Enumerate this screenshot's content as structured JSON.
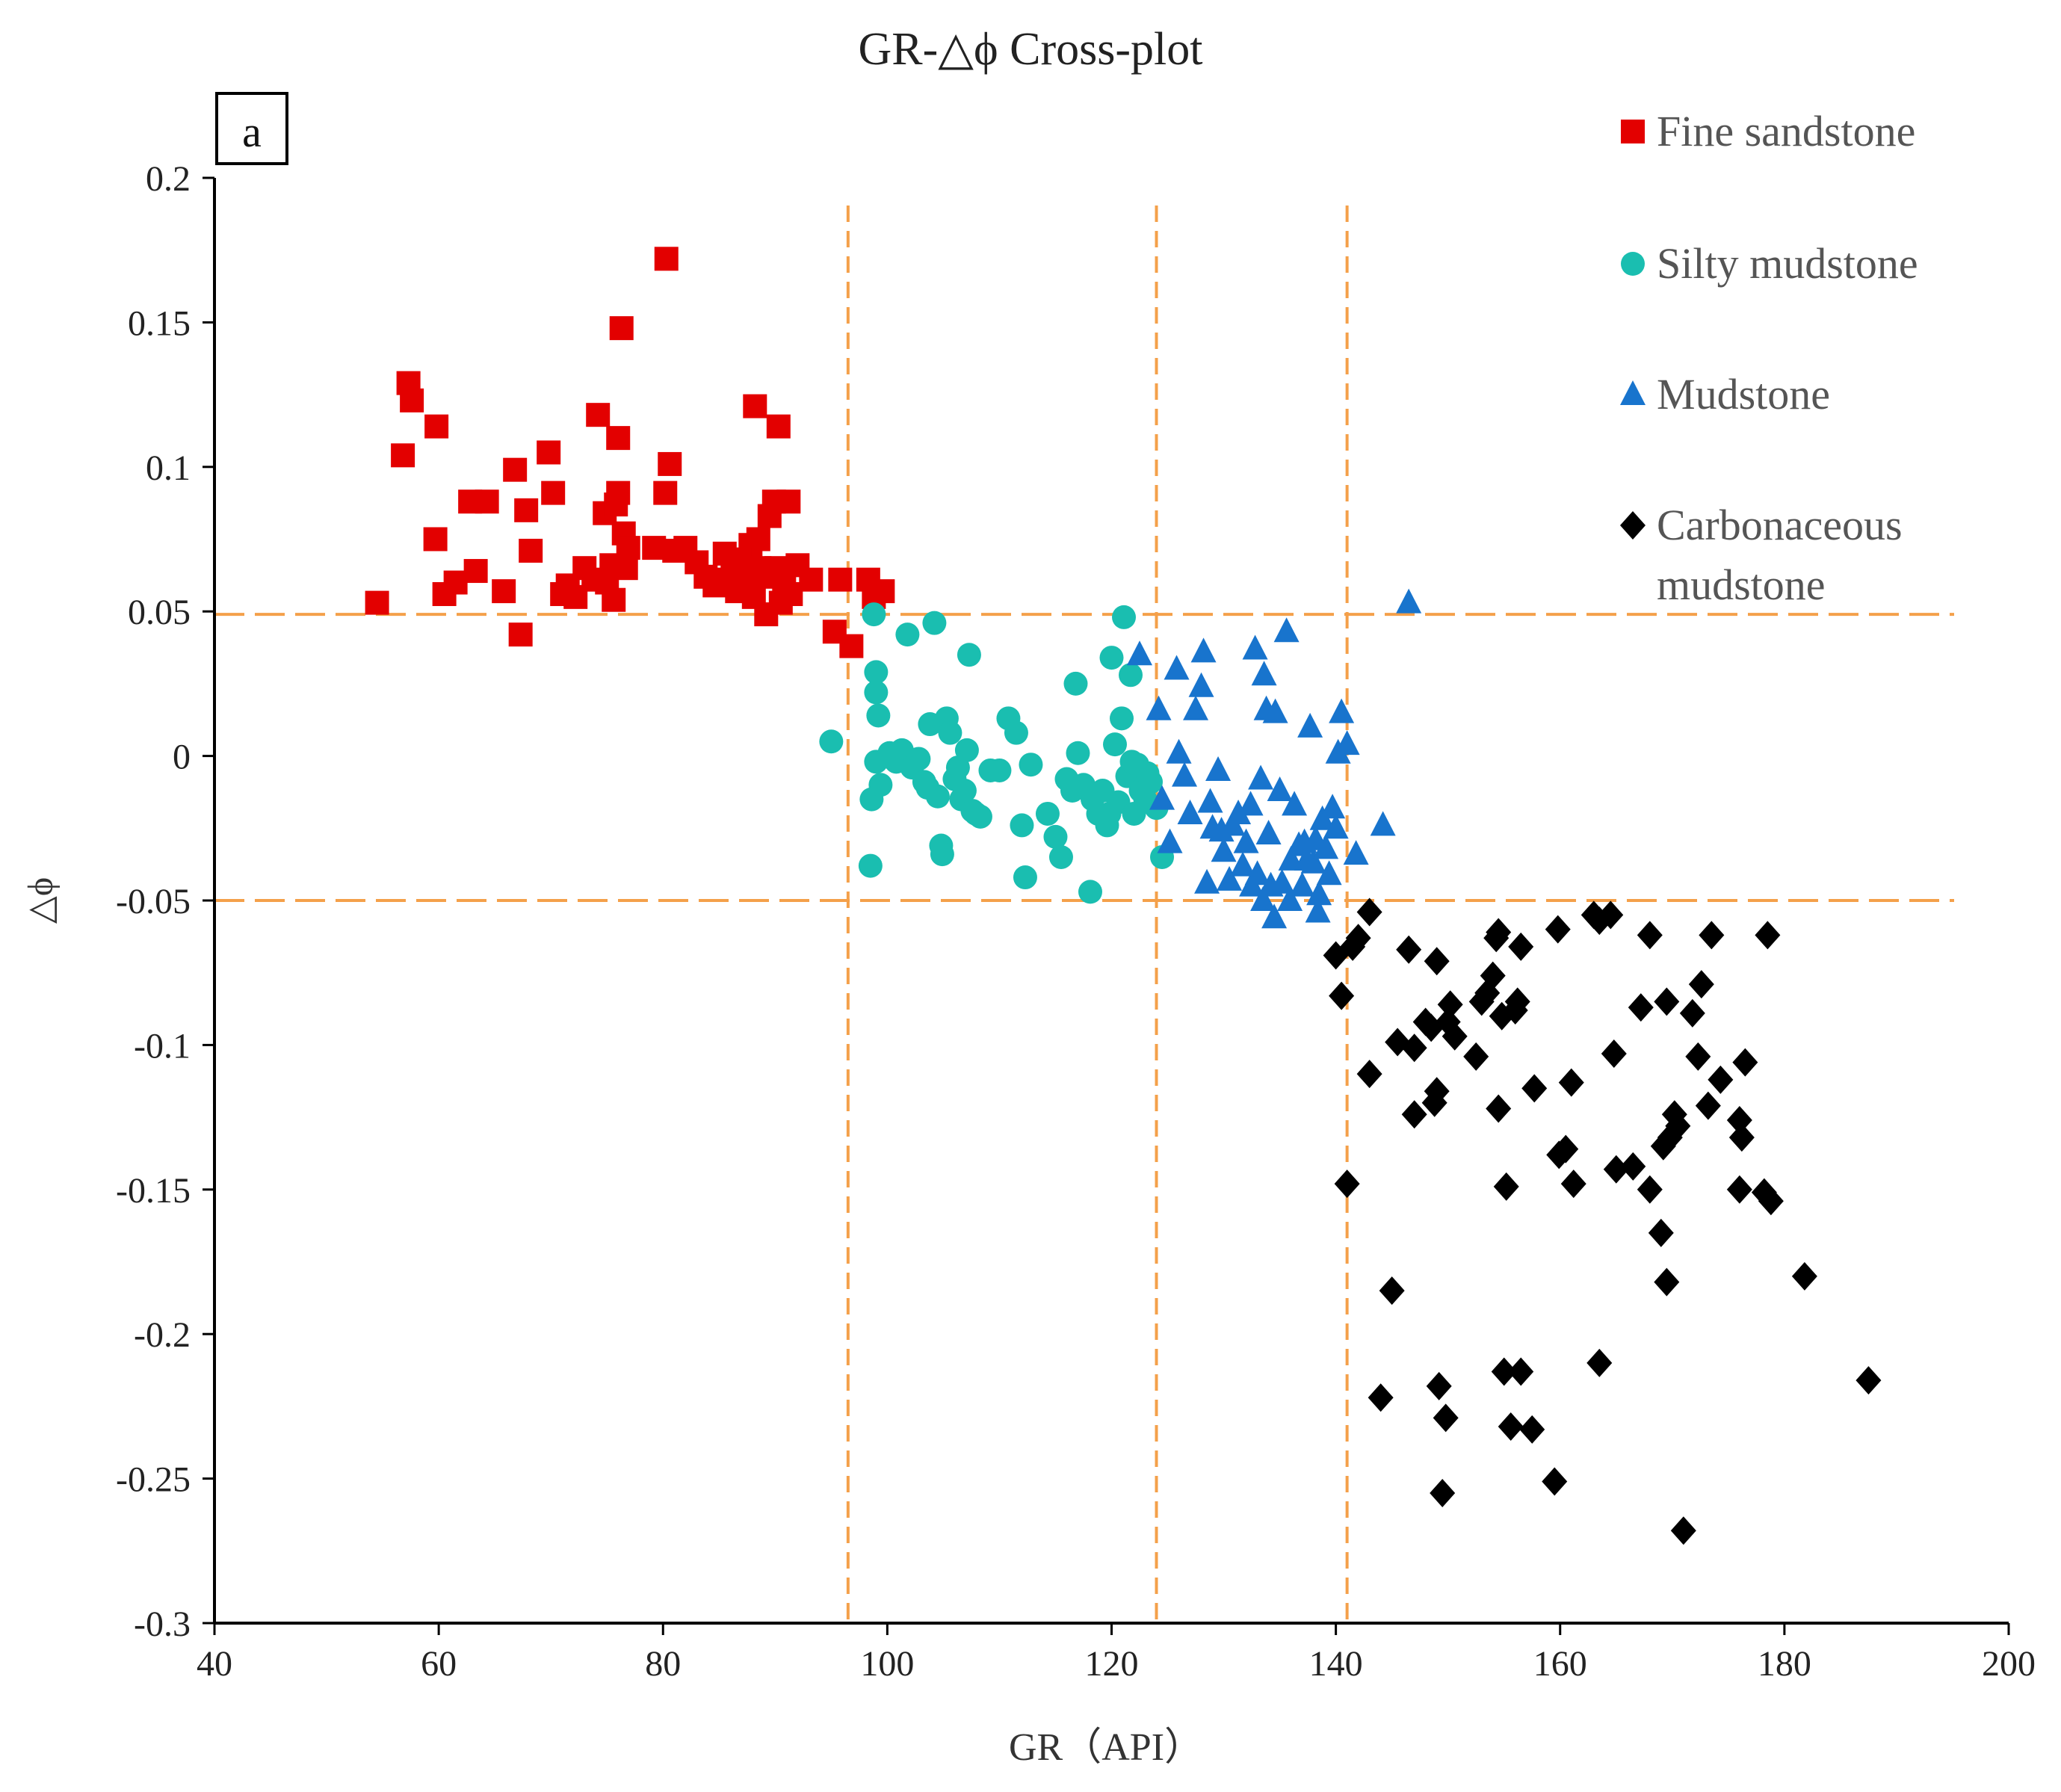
{
  "chart_data": {
    "type": "scatter",
    "title": "GR-△ϕ Cross-plot",
    "panel_label": "a",
    "xlabel": "GR（API）",
    "ylabel": "△ϕ",
    "xlim": [
      40,
      200
    ],
    "ylim": [
      -0.3,
      0.2
    ],
    "x_ticks": [
      40,
      60,
      80,
      100,
      120,
      140,
      160,
      180,
      200
    ],
    "y_ticks": [
      0.2,
      0.15,
      0.1,
      0.05,
      0,
      -0.05,
      -0.1,
      -0.15,
      -0.2,
      -0.25,
      -0.3
    ],
    "x_tick_labels": [
      "40",
      "60",
      "80",
      "100",
      "120",
      "140",
      "160",
      "180",
      "200"
    ],
    "y_tick_labels": [
      "0.2",
      "0.15",
      "0.1",
      "0.05",
      "0",
      "-0.05",
      "-0.1",
      "-0.15",
      "-0.2",
      "-0.25",
      "-0.3"
    ],
    "grid": false,
    "legend_position": "top-right",
    "reference_lines": {
      "vertical_x": [
        96.5,
        124,
        141
      ],
      "horizontal_y": [
        0.049,
        -0.05
      ],
      "color": "#F4A04A"
    },
    "series": [
      {
        "name": "Fine sandstone",
        "marker": "square",
        "color": "#E30000",
        "points": [
          [
            54.5,
            0.053
          ],
          [
            56.8,
            0.104
          ],
          [
            57.3,
            0.129
          ],
          [
            57.6,
            0.123
          ],
          [
            59.8,
            0.114
          ],
          [
            59.7,
            0.075
          ],
          [
            60.5,
            0.056
          ],
          [
            61.5,
            0.06
          ],
          [
            62.8,
            0.088
          ],
          [
            63.3,
            0.064
          ],
          [
            64.3,
            0.088
          ],
          [
            65.8,
            0.057
          ],
          [
            66.8,
            0.099
          ],
          [
            67.3,
            0.042
          ],
          [
            67.8,
            0.085
          ],
          [
            68.2,
            0.071
          ],
          [
            69.8,
            0.105
          ],
          [
            70.2,
            0.091
          ],
          [
            71.0,
            0.056
          ],
          [
            71.5,
            0.059
          ],
          [
            72.2,
            0.055
          ],
          [
            73.0,
            0.065
          ],
          [
            73.8,
            0.061
          ],
          [
            74.2,
            0.118
          ],
          [
            74.8,
            0.084
          ],
          [
            75.0,
            0.06
          ],
          [
            75.4,
            0.066
          ],
          [
            75.6,
            0.054
          ],
          [
            75.8,
            0.087
          ],
          [
            76.0,
            0.11
          ],
          [
            76.0,
            0.091
          ],
          [
            76.3,
            0.148
          ],
          [
            76.5,
            0.077
          ],
          [
            76.7,
            0.065
          ],
          [
            76.9,
            0.072
          ],
          [
            79.2,
            0.072
          ],
          [
            80.3,
            0.172
          ],
          [
            80.2,
            0.091
          ],
          [
            80.6,
            0.101
          ],
          [
            81.0,
            0.071
          ],
          [
            82.0,
            0.072
          ],
          [
            83.0,
            0.067
          ],
          [
            83.8,
            0.062
          ],
          [
            84.6,
            0.059
          ],
          [
            85.5,
            0.07
          ],
          [
            86.2,
            0.065
          ],
          [
            86.6,
            0.057
          ],
          [
            87.2,
            0.059
          ],
          [
            87.6,
            0.063
          ],
          [
            87.8,
            0.073
          ],
          [
            88.2,
            0.121
          ],
          [
            88.1,
            0.055
          ],
          [
            88.5,
            0.075
          ],
          [
            89.0,
            0.062
          ],
          [
            89.2,
            0.049
          ],
          [
            89.5,
            0.083
          ],
          [
            89.9,
            0.088
          ],
          [
            90.3,
            0.114
          ],
          [
            90.1,
            0.065
          ],
          [
            90.8,
            0.06
          ],
          [
            91.2,
            0.088
          ],
          [
            91.4,
            0.056
          ],
          [
            92.0,
            0.066
          ],
          [
            93.2,
            0.061
          ],
          [
            95.3,
            0.043
          ],
          [
            95.8,
            0.061
          ],
          [
            96.8,
            0.038
          ],
          [
            98.3,
            0.061
          ],
          [
            98.8,
            0.055
          ],
          [
            99.6,
            0.057
          ],
          [
            85.2,
            0.061
          ],
          [
            86.8,
            0.068
          ],
          [
            88.6,
            0.065
          ],
          [
            90.5,
            0.053
          ]
        ]
      },
      {
        "name": "Silty mudstone",
        "marker": "circle",
        "color": "#1ABEB0",
        "points": [
          [
            95.0,
            0.005
          ],
          [
            98.5,
            -0.038
          ],
          [
            98.6,
            -0.015
          ],
          [
            98.8,
            0.049
          ],
          [
            99.0,
            0.029
          ],
          [
            99.0,
            0.022
          ],
          [
            99.2,
            0.014
          ],
          [
            99.0,
            -0.002
          ],
          [
            99.4,
            -0.01
          ],
          [
            100.2,
            0.001
          ],
          [
            100.8,
            -0.002
          ],
          [
            101.3,
            0.002
          ],
          [
            101.8,
            0.042
          ],
          [
            102.2,
            -0.004
          ],
          [
            102.8,
            -0.001
          ],
          [
            103.3,
            -0.009
          ],
          [
            103.6,
            -0.011
          ],
          [
            103.8,
            0.011
          ],
          [
            104.2,
            0.046
          ],
          [
            104.5,
            -0.014
          ],
          [
            104.8,
            -0.031
          ],
          [
            104.9,
            -0.034
          ],
          [
            105.3,
            0.013
          ],
          [
            105.6,
            0.008
          ],
          [
            106.0,
            -0.008
          ],
          [
            106.3,
            -0.004
          ],
          [
            106.6,
            -0.015
          ],
          [
            106.9,
            -0.012
          ],
          [
            107.1,
            0.002
          ],
          [
            107.3,
            0.035
          ],
          [
            107.6,
            -0.019
          ],
          [
            107.9,
            -0.02
          ],
          [
            108.3,
            -0.021
          ],
          [
            109.2,
            -0.005
          ],
          [
            110.0,
            -0.005
          ],
          [
            110.8,
            0.013
          ],
          [
            111.5,
            0.008
          ],
          [
            112.0,
            -0.024
          ],
          [
            112.3,
            -0.042
          ],
          [
            112.8,
            -0.003
          ],
          [
            114.3,
            -0.02
          ],
          [
            115.0,
            -0.028
          ],
          [
            115.5,
            -0.035
          ],
          [
            116.0,
            -0.008
          ],
          [
            116.5,
            -0.012
          ],
          [
            116.8,
            0.025
          ],
          [
            117.0,
            0.001
          ],
          [
            117.5,
            -0.01
          ],
          [
            118.1,
            -0.047
          ],
          [
            118.3,
            -0.015
          ],
          [
            118.8,
            -0.02
          ],
          [
            119.2,
            -0.012
          ],
          [
            119.6,
            -0.024
          ],
          [
            120.0,
            0.034
          ],
          [
            120.3,
            0.004
          ],
          [
            120.6,
            -0.016
          ],
          [
            120.9,
            0.013
          ],
          [
            121.1,
            0.048
          ],
          [
            121.4,
            -0.007
          ],
          [
            121.7,
            0.028
          ],
          [
            122.0,
            -0.02
          ],
          [
            122.3,
            -0.003
          ],
          [
            122.6,
            -0.012
          ],
          [
            123.0,
            -0.015
          ],
          [
            123.2,
            -0.006
          ],
          [
            123.5,
            -0.009
          ],
          [
            124.0,
            -0.018
          ],
          [
            124.5,
            -0.035
          ],
          [
            119.8,
            -0.02
          ],
          [
            121.8,
            -0.002
          ]
        ]
      },
      {
        "name": "Mudstone",
        "marker": "triangle",
        "color": "#1874CD",
        "points": [
          [
            122.5,
            0.035
          ],
          [
            124.2,
            0.016
          ],
          [
            124.5,
            -0.015
          ],
          [
            125.2,
            -0.03
          ],
          [
            125.8,
            0.03
          ],
          [
            126.0,
            0.001
          ],
          [
            126.5,
            -0.007
          ],
          [
            127.0,
            -0.02
          ],
          [
            127.5,
            0.016
          ],
          [
            128.0,
            0.024
          ],
          [
            128.2,
            0.036
          ],
          [
            128.5,
            -0.044
          ],
          [
            128.8,
            -0.016
          ],
          [
            129.0,
            -0.025
          ],
          [
            129.5,
            -0.005
          ],
          [
            130.0,
            -0.033
          ],
          [
            130.5,
            -0.043
          ],
          [
            130.8,
            -0.024
          ],
          [
            131.3,
            -0.02
          ],
          [
            131.7,
            -0.038
          ],
          [
            132.0,
            -0.03
          ],
          [
            132.4,
            -0.017
          ],
          [
            132.8,
            0.037
          ],
          [
            133.0,
            -0.041
          ],
          [
            133.3,
            -0.008
          ],
          [
            133.5,
            -0.05
          ],
          [
            133.6,
            0.028
          ],
          [
            133.8,
            0.016
          ],
          [
            134.0,
            -0.027
          ],
          [
            134.2,
            -0.045
          ],
          [
            134.5,
            -0.056
          ],
          [
            134.6,
            0.015
          ],
          [
            135.0,
            -0.012
          ],
          [
            135.2,
            -0.044
          ],
          [
            135.6,
            0.043
          ],
          [
            135.9,
            -0.05
          ],
          [
            136.3,
            -0.017
          ],
          [
            136.7,
            -0.031
          ],
          [
            137.0,
            -0.045
          ],
          [
            137.4,
            -0.036
          ],
          [
            137.7,
            0.01
          ],
          [
            138.0,
            -0.037
          ],
          [
            138.2,
            -0.029
          ],
          [
            138.5,
            -0.048
          ],
          [
            138.8,
            -0.022
          ],
          [
            139.1,
            -0.032
          ],
          [
            139.4,
            -0.041
          ],
          [
            139.7,
            -0.018
          ],
          [
            140.0,
            -0.025
          ],
          [
            140.2,
            0.001
          ],
          [
            140.5,
            0.015
          ],
          [
            141.0,
            0.004
          ],
          [
            141.8,
            -0.034
          ],
          [
            144.2,
            -0.024
          ],
          [
            146.5,
            0.053
          ],
          [
            138.4,
            -0.054
          ],
          [
            137.2,
            -0.03
          ],
          [
            132.5,
            -0.045
          ],
          [
            129.8,
            -0.026
          ],
          [
            136.0,
            -0.036
          ]
        ]
      },
      {
        "name": "Carbonaceous mudstone",
        "marker": "diamond",
        "color": "#000000",
        "points": [
          [
            140.0,
            -0.069
          ],
          [
            140.5,
            -0.083
          ],
          [
            141.0,
            -0.148
          ],
          [
            141.5,
            -0.066
          ],
          [
            142.0,
            -0.063
          ],
          [
            143.0,
            -0.054
          ],
          [
            143.0,
            -0.11
          ],
          [
            144.0,
            -0.222
          ],
          [
            145.0,
            -0.185
          ],
          [
            145.5,
            -0.099
          ],
          [
            146.5,
            -0.067
          ],
          [
            147.0,
            -0.101
          ],
          [
            147.0,
            -0.124
          ],
          [
            148.0,
            -0.092
          ],
          [
            148.5,
            -0.094
          ],
          [
            148.8,
            -0.12
          ],
          [
            149.0,
            -0.116
          ],
          [
            149.0,
            -0.071
          ],
          [
            149.2,
            -0.218
          ],
          [
            149.5,
            -0.255
          ],
          [
            149.8,
            -0.229
          ],
          [
            150.0,
            -0.092
          ],
          [
            150.2,
            -0.086
          ],
          [
            150.6,
            -0.097
          ],
          [
            152.5,
            -0.104
          ],
          [
            153.0,
            -0.085
          ],
          [
            153.5,
            -0.082
          ],
          [
            154.0,
            -0.076
          ],
          [
            154.3,
            -0.063
          ],
          [
            154.5,
            -0.061
          ],
          [
            154.5,
            -0.122
          ],
          [
            154.8,
            -0.09
          ],
          [
            155.0,
            -0.213
          ],
          [
            155.2,
            -0.149
          ],
          [
            155.6,
            -0.232
          ],
          [
            156.0,
            -0.088
          ],
          [
            156.2,
            -0.085
          ],
          [
            156.5,
            -0.066
          ],
          [
            156.5,
            -0.213
          ],
          [
            157.5,
            -0.233
          ],
          [
            157.7,
            -0.115
          ],
          [
            159.5,
            -0.251
          ],
          [
            159.8,
            -0.06
          ],
          [
            159.9,
            -0.138
          ],
          [
            160.5,
            -0.136
          ],
          [
            161.0,
            -0.113
          ],
          [
            161.2,
            -0.148
          ],
          [
            163.0,
            -0.055
          ],
          [
            163.5,
            -0.21
          ],
          [
            163.5,
            -0.057
          ],
          [
            164.5,
            -0.055
          ],
          [
            164.8,
            -0.103
          ],
          [
            165.0,
            -0.143
          ],
          [
            166.5,
            -0.142
          ],
          [
            167.2,
            -0.087
          ],
          [
            168.0,
            -0.062
          ],
          [
            168.0,
            -0.15
          ],
          [
            169.0,
            -0.165
          ],
          [
            169.2,
            -0.135
          ],
          [
            169.5,
            -0.085
          ],
          [
            169.5,
            -0.182
          ],
          [
            169.8,
            -0.132
          ],
          [
            170.2,
            -0.124
          ],
          [
            170.5,
            -0.128
          ],
          [
            171.0,
            -0.268
          ],
          [
            171.8,
            -0.089
          ],
          [
            172.3,
            -0.104
          ],
          [
            172.6,
            -0.079
          ],
          [
            173.2,
            -0.121
          ],
          [
            173.5,
            -0.062
          ],
          [
            174.3,
            -0.112
          ],
          [
            176.0,
            -0.15
          ],
          [
            176.0,
            -0.126
          ],
          [
            176.2,
            -0.132
          ],
          [
            176.5,
            -0.106
          ],
          [
            178.2,
            -0.151
          ],
          [
            178.5,
            -0.062
          ],
          [
            178.8,
            -0.154
          ],
          [
            181.8,
            -0.18
          ],
          [
            187.5,
            -0.216
          ]
        ]
      }
    ]
  }
}
